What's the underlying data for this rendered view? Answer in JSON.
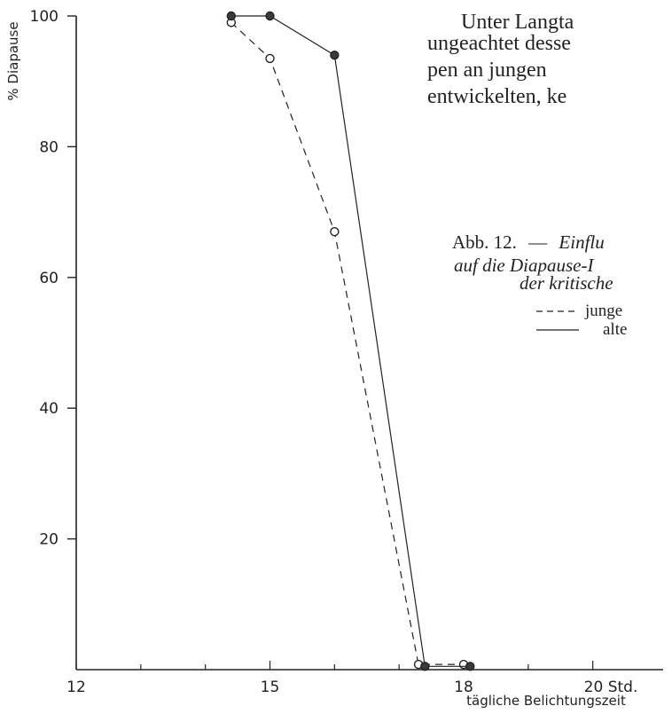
{
  "chart_data": {
    "type": "line",
    "ylabel": "% Diapause",
    "xlabel": "tägliche Belichtungszeit",
    "xlim": [
      12,
      20
    ],
    "ylim": [
      0,
      100
    ],
    "x_ticks": [
      12,
      15,
      18,
      20
    ],
    "x_tick_labels": [
      "12",
      "15",
      "18",
      "20 Std."
    ],
    "y_ticks": [
      20,
      40,
      60,
      80,
      100
    ],
    "y_tick_labels": [
      "20",
      "40",
      "60",
      "80",
      "100"
    ],
    "grid": false,
    "series": [
      {
        "name": "junge",
        "style": "dashed",
        "marker": "open-circle",
        "x": [
          14.4,
          15.0,
          16.0,
          17.3,
          18.0
        ],
        "y": [
          99,
          93.5,
          67,
          0.8,
          0.8
        ]
      },
      {
        "name": "alte",
        "style": "solid",
        "marker": "filled-circle",
        "x": [
          14.4,
          15.0,
          16.0,
          17.4,
          18.1
        ],
        "y": [
          100,
          100,
          94,
          0.5,
          0.5
        ]
      }
    ]
  },
  "background_text": {
    "lines": [
      "Unter Langta",
      "ungeachtet desse",
      "pen an jungen",
      "entwickelten, ke"
    ]
  },
  "caption": {
    "label": "Abb. 12.",
    "dash": "—",
    "line1_italic": "Einflu",
    "line2": "auf die Diapause-I",
    "line3": "der kritische",
    "legend_young": "junge",
    "legend_old": "alte"
  },
  "colors": {
    "ink": "#222222",
    "background": "#ffffff"
  }
}
